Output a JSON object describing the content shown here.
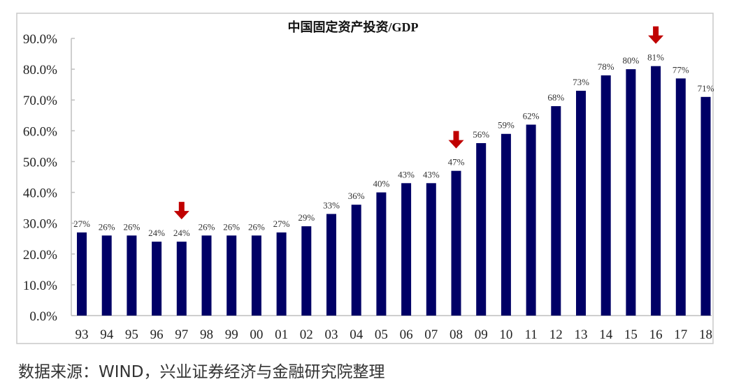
{
  "chart_data": {
    "type": "bar",
    "title": "中国固定资产投资/GDP",
    "xlabel": "",
    "ylabel": "",
    "ylim": [
      0,
      90
    ],
    "yticks": [
      "0.0%",
      "10.0%",
      "20.0%",
      "30.0%",
      "40.0%",
      "50.0%",
      "60.0%",
      "70.0%",
      "80.0%",
      "90.0%"
    ],
    "categories": [
      "93",
      "94",
      "95",
      "96",
      "97",
      "98",
      "99",
      "00",
      "01",
      "02",
      "03",
      "04",
      "05",
      "06",
      "07",
      "08",
      "09",
      "10",
      "11",
      "12",
      "13",
      "14",
      "15",
      "16",
      "17",
      "18"
    ],
    "values": [
      27,
      26,
      26,
      24,
      24,
      26,
      26,
      26,
      27,
      29,
      33,
      36,
      40,
      43,
      43,
      47,
      56,
      59,
      62,
      68,
      73,
      78,
      80,
      81,
      77,
      71
    ],
    "data_labels": [
      "27%",
      "26%",
      "26%",
      "24%",
      "24%",
      "26%",
      "26%",
      "26%",
      "27%",
      "29%",
      "33%",
      "36%",
      "40%",
      "43%",
      "43%",
      "47%",
      "56%",
      "59%",
      "62%",
      "68%",
      "73%",
      "78%",
      "80%",
      "81%",
      "77%",
      "71%"
    ],
    "annotations": [
      {
        "type": "down-arrow",
        "category": "97"
      },
      {
        "type": "down-arrow",
        "category": "08"
      },
      {
        "type": "down-arrow",
        "category": "16"
      }
    ],
    "grid": false,
    "legend": "none",
    "colors": {
      "bar": "#000066",
      "arrow": "#c00000",
      "axis": "#bfbfbf",
      "frame": "#bfbfbf"
    }
  },
  "source": "数据来源：WIND，兴业证券经济与金融研究院整理"
}
